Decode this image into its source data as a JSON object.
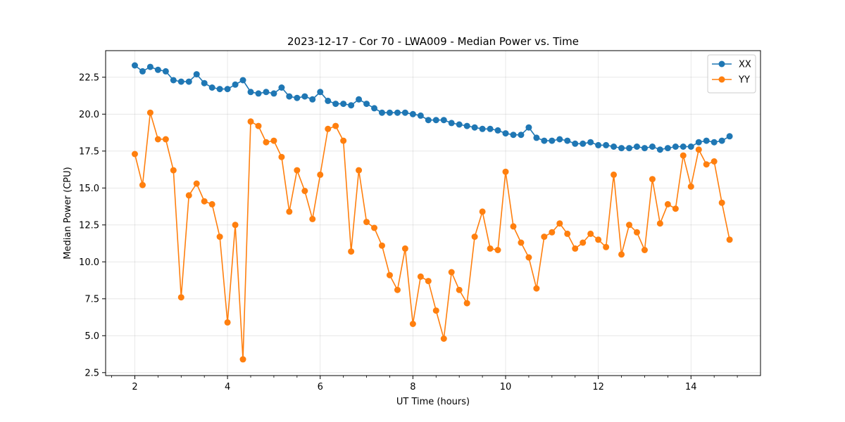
{
  "chart_data": {
    "type": "line",
    "title": "2023-12-17 - Cor 70 - LWA009 - Median Power vs. Time",
    "xlabel": "UT Time (hours)",
    "ylabel": "Median Power (CPU)",
    "xlim": [
      1.37,
      15.5
    ],
    "ylim": [
      2.3,
      24.3
    ],
    "xticks": [
      2,
      4,
      6,
      8,
      10,
      12,
      14
    ],
    "xtick_labels": [
      "2",
      "4",
      "6",
      "8",
      "10",
      "12",
      "14"
    ],
    "xminor": [
      1.5,
      2.5,
      3,
      3.5,
      4.5,
      5,
      5.5,
      6.5,
      7,
      7.5,
      8.5,
      9,
      9.5,
      10.5,
      11,
      11.5,
      12.5,
      13,
      13.5,
      14.5,
      15
    ],
    "yticks": [
      2.5,
      5.0,
      7.5,
      10.0,
      12.5,
      15.0,
      17.5,
      20.0,
      22.5
    ],
    "ytick_labels": [
      "2.5",
      "5.0",
      "7.5",
      "10.0",
      "12.5",
      "15.0",
      "17.5",
      "20.0",
      "22.5"
    ],
    "grid": true,
    "legend_position": "top-right",
    "x": [
      2.0,
      2.167,
      2.333,
      2.5,
      2.667,
      2.833,
      3.0,
      3.167,
      3.333,
      3.5,
      3.667,
      3.833,
      4.0,
      4.167,
      4.333,
      4.5,
      4.667,
      4.833,
      5.0,
      5.167,
      5.333,
      5.5,
      5.667,
      5.833,
      6.0,
      6.167,
      6.333,
      6.5,
      6.667,
      6.833,
      7.0,
      7.167,
      7.333,
      7.5,
      7.667,
      7.833,
      8.0,
      8.167,
      8.333,
      8.5,
      8.667,
      8.833,
      9.0,
      9.167,
      9.333,
      9.5,
      9.667,
      9.833,
      10.0,
      10.167,
      10.333,
      10.5,
      10.667,
      10.833,
      11.0,
      11.167,
      11.333,
      11.5,
      11.667,
      11.833,
      12.0,
      12.167,
      12.333,
      12.5,
      12.667,
      12.833,
      13.0,
      13.167,
      13.333,
      13.5,
      13.667,
      13.833,
      14.0,
      14.167,
      14.333,
      14.5,
      14.667,
      14.833
    ],
    "series": [
      {
        "name": "XX",
        "color": "#1f77b4",
        "values": [
          23.3,
          22.9,
          23.2,
          23.0,
          22.9,
          22.3,
          22.2,
          22.2,
          22.7,
          22.1,
          21.8,
          21.7,
          21.7,
          22.0,
          22.3,
          21.5,
          21.4,
          21.5,
          21.4,
          21.8,
          21.2,
          21.1,
          21.2,
          21.0,
          21.5,
          20.9,
          20.7,
          20.7,
          20.6,
          21.0,
          20.7,
          20.4,
          20.1,
          20.1,
          20.1,
          20.1,
          20.0,
          19.9,
          19.6,
          19.6,
          19.6,
          19.4,
          19.3,
          19.2,
          19.1,
          19.0,
          19.0,
          18.9,
          18.7,
          18.6,
          18.6,
          19.1,
          18.4,
          18.2,
          18.2,
          18.3,
          18.2,
          18.0,
          18.0,
          18.1,
          17.9,
          17.9,
          17.8,
          17.7,
          17.7,
          17.8,
          17.7,
          17.8,
          17.6,
          17.7,
          17.8,
          17.8,
          17.8,
          18.1,
          18.2,
          18.1,
          18.2,
          18.5
        ]
      },
      {
        "name": "YY",
        "color": "#ff7f0e",
        "values": [
          17.3,
          15.2,
          20.1,
          18.3,
          18.3,
          16.2,
          7.6,
          14.5,
          15.3,
          14.1,
          13.9,
          11.7,
          5.9,
          12.5,
          3.4,
          19.5,
          19.2,
          18.1,
          18.2,
          17.1,
          13.4,
          16.2,
          14.8,
          12.9,
          15.9,
          19.0,
          19.2,
          18.2,
          10.7,
          16.2,
          12.7,
          12.3,
          11.1,
          9.1,
          8.1,
          10.9,
          5.8,
          9.0,
          8.7,
          6.7,
          4.8,
          9.3,
          8.1,
          7.2,
          11.7,
          13.4,
          10.9,
          10.8,
          16.1,
          12.4,
          11.3,
          10.3,
          8.2,
          11.7,
          12.0,
          12.6,
          11.9,
          10.9,
          11.3,
          11.9,
          11.5,
          11.0,
          15.9,
          10.5,
          12.5,
          12.0,
          10.8,
          15.6,
          12.6,
          13.9,
          13.6,
          17.2,
          15.1,
          17.6,
          16.6,
          16.8,
          14.0,
          11.5
        ]
      }
    ]
  }
}
